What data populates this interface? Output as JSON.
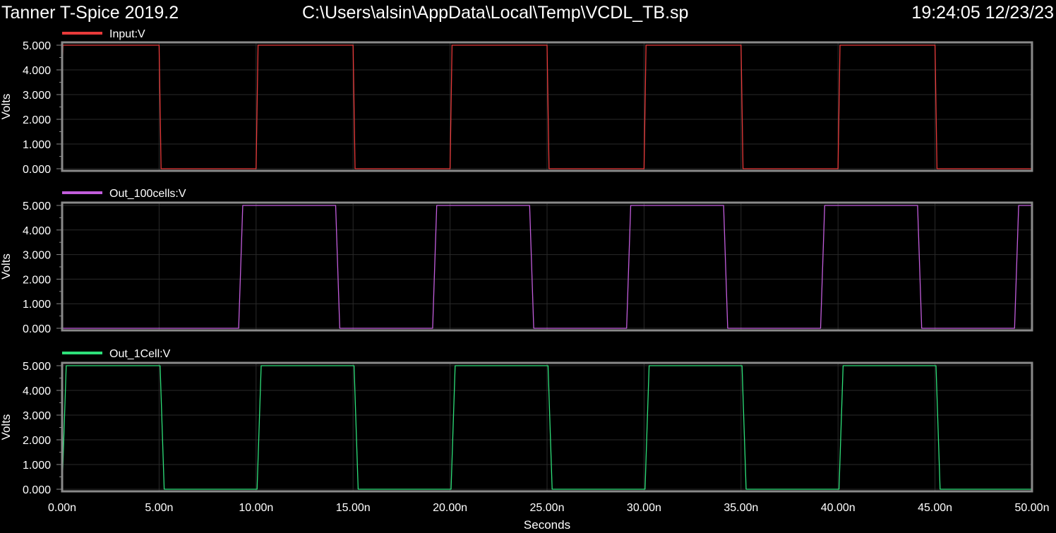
{
  "header": {
    "app_title": "Tanner T-Spice 2019.2",
    "file_path": "C:\\Users\\alsin\\AppData\\Local\\Temp\\VCDL_TB.sp",
    "timestamp": "19:24:05 12/23/23"
  },
  "chart_data": [
    {
      "type": "line",
      "series": [
        {
          "name": "Input:V",
          "color": "#e83a3a",
          "transitions": [
            {
              "t": 0.0,
              "from": 3.5,
              "to": 5.0,
              "dur": 0.05
            },
            {
              "t": 5.0,
              "from": 5.0,
              "to": 0.0,
              "dur": 0.12
            },
            {
              "t": 10.0,
              "from": 0.0,
              "to": 5.0,
              "dur": 0.12
            },
            {
              "t": 15.0,
              "from": 5.0,
              "to": 0.0,
              "dur": 0.12
            },
            {
              "t": 20.0,
              "from": 0.0,
              "to": 5.0,
              "dur": 0.12
            },
            {
              "t": 25.0,
              "from": 5.0,
              "to": 0.0,
              "dur": 0.12
            },
            {
              "t": 30.0,
              "from": 0.0,
              "to": 5.0,
              "dur": 0.12
            },
            {
              "t": 35.0,
              "from": 5.0,
              "to": 0.0,
              "dur": 0.12
            },
            {
              "t": 40.0,
              "from": 0.0,
              "to": 5.0,
              "dur": 0.12
            },
            {
              "t": 45.0,
              "from": 5.0,
              "to": 0.0,
              "dur": 0.12
            }
          ],
          "end_value": 0.0
        }
      ],
      "ylabel": "Volts",
      "ylim": [
        0,
        5.0
      ],
      "xlim": [
        0,
        50
      ],
      "yticks": [
        "0.000",
        "1.000",
        "2.000",
        "3.000",
        "4.000",
        "5.000"
      ],
      "grid": true
    },
    {
      "type": "line",
      "series": [
        {
          "name": "Out_100cells:V",
          "color": "#c25ddc",
          "transitions": [
            {
              "t": 9.1,
              "from": 0.0,
              "to": 5.0,
              "dur": 0.25
            },
            {
              "t": 14.1,
              "from": 5.0,
              "to": 0.0,
              "dur": 0.25
            },
            {
              "t": 19.1,
              "from": 0.0,
              "to": 5.0,
              "dur": 0.25
            },
            {
              "t": 24.1,
              "from": 5.0,
              "to": 0.0,
              "dur": 0.25
            },
            {
              "t": 29.1,
              "from": 0.0,
              "to": 5.0,
              "dur": 0.25
            },
            {
              "t": 34.1,
              "from": 5.0,
              "to": 0.0,
              "dur": 0.25
            },
            {
              "t": 39.1,
              "from": 0.0,
              "to": 5.0,
              "dur": 0.25
            },
            {
              "t": 44.1,
              "from": 5.0,
              "to": 0.0,
              "dur": 0.25
            },
            {
              "t": 49.1,
              "from": 0.0,
              "to": 5.0,
              "dur": 0.25
            }
          ],
          "start_value": 0.0
        }
      ],
      "ylabel": "Volts",
      "ylim": [
        0,
        5.0
      ],
      "xlim": [
        0,
        50
      ],
      "yticks": [
        "0.000",
        "1.000",
        "2.000",
        "3.000",
        "4.000",
        "5.000"
      ],
      "grid": true
    },
    {
      "type": "line",
      "series": [
        {
          "name": "Out_1Cell:V",
          "color": "#2ee07a",
          "transitions": [
            {
              "t": 0.0,
              "from": 0.0,
              "to": 5.0,
              "dur": 0.25
            },
            {
              "t": 5.05,
              "from": 5.0,
              "to": 0.0,
              "dur": 0.25
            },
            {
              "t": 10.05,
              "from": 0.0,
              "to": 5.0,
              "dur": 0.25
            },
            {
              "t": 15.05,
              "from": 5.0,
              "to": 0.0,
              "dur": 0.25
            },
            {
              "t": 20.05,
              "from": 0.0,
              "to": 5.0,
              "dur": 0.25
            },
            {
              "t": 25.05,
              "from": 5.0,
              "to": 0.0,
              "dur": 0.25
            },
            {
              "t": 30.05,
              "from": 0.0,
              "to": 5.0,
              "dur": 0.25
            },
            {
              "t": 35.05,
              "from": 5.0,
              "to": 0.0,
              "dur": 0.25
            },
            {
              "t": 40.05,
              "from": 0.0,
              "to": 5.0,
              "dur": 0.25
            },
            {
              "t": 45.05,
              "from": 5.0,
              "to": 0.0,
              "dur": 0.25
            }
          ],
          "end_value": 0.0
        }
      ],
      "ylabel": "Volts",
      "xlabel": "Seconds",
      "ylim": [
        0,
        5.0
      ],
      "xlim": [
        0,
        50
      ],
      "yticks": [
        "0.000",
        "1.000",
        "2.000",
        "3.000",
        "4.000",
        "5.000"
      ],
      "xticks": [
        "0.00n",
        "5.00n",
        "10.00n",
        "15.00n",
        "20.00n",
        "25.00n",
        "30.00n",
        "35.00n",
        "40.00n",
        "45.00n",
        "50.00n"
      ],
      "grid": true
    }
  ]
}
